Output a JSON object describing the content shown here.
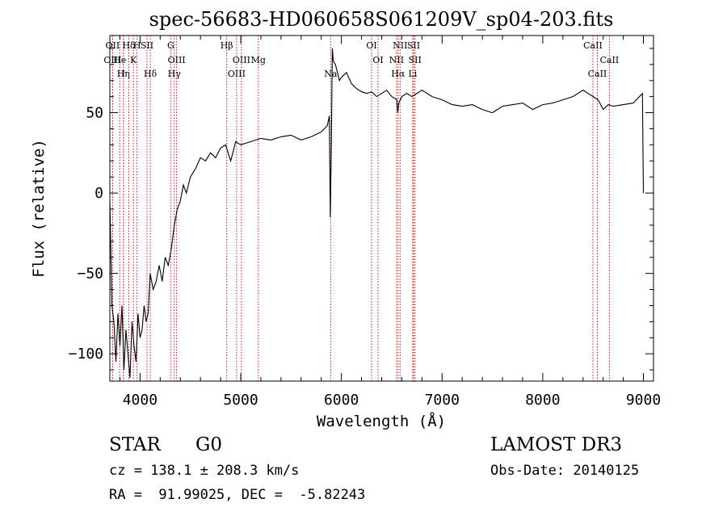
{
  "chart_data": {
    "type": "line",
    "title": "spec-56683-HD060658S061209V_sp04-203.fits",
    "xlabel": "Wavelength (Å)",
    "ylabel": "Flux (relative)",
    "xlim": [
      3700,
      9100
    ],
    "ylim": [
      -117,
      98
    ],
    "x_ticks": [
      4000,
      5000,
      6000,
      7000,
      8000,
      9000
    ],
    "y_ticks": [
      -100,
      -50,
      0,
      50
    ],
    "grid": false,
    "series": [
      {
        "color": "#000000",
        "x": [
          3700,
          3720,
          3740,
          3760,
          3780,
          3800,
          3820,
          3840,
          3860,
          3880,
          3900,
          3920,
          3940,
          3960,
          3980,
          4000,
          4020,
          4040,
          4060,
          4080,
          4100,
          4130,
          4160,
          4190,
          4220,
          4250,
          4280,
          4310,
          4340,
          4370,
          4400,
          4430,
          4460,
          4500,
          4550,
          4600,
          4650,
          4700,
          4750,
          4800,
          4850,
          4900,
          4950,
          5000,
          5100,
          5200,
          5300,
          5400,
          5500,
          5600,
          5700,
          5800,
          5860,
          5880,
          5890,
          5900,
          5910,
          5920,
          5940,
          5960,
          5980,
          6000,
          6050,
          6100,
          6150,
          6200,
          6250,
          6300,
          6350,
          6400,
          6450,
          6500,
          6550,
          6560,
          6570,
          6600,
          6650,
          6700,
          6800,
          6900,
          7000,
          7100,
          7200,
          7300,
          7400,
          7500,
          7600,
          7700,
          7800,
          7900,
          8000,
          8100,
          8200,
          8300,
          8400,
          8450,
          8500,
          8550,
          8600,
          8650,
          8700,
          8800,
          8900,
          8960,
          8990,
          9000
        ],
        "y": [
          -5,
          -70,
          -80,
          -105,
          -75,
          -95,
          -70,
          -110,
          -85,
          -100,
          -115,
          -80,
          -95,
          -105,
          -75,
          -90,
          -85,
          -70,
          -80,
          -75,
          -50,
          -60,
          -55,
          -45,
          -55,
          -40,
          -45,
          -35,
          -20,
          -10,
          -5,
          5,
          0,
          10,
          15,
          22,
          20,
          25,
          22,
          28,
          30,
          20,
          32,
          30,
          32,
          34,
          33,
          35,
          36,
          33,
          35,
          38,
          42,
          48,
          -15,
          30,
          90,
          82,
          80,
          75,
          70,
          72,
          75,
          68,
          65,
          63,
          62,
          63,
          60,
          62,
          64,
          60,
          58,
          50,
          56,
          60,
          62,
          60,
          64,
          60,
          58,
          55,
          54,
          55,
          52,
          50,
          54,
          55,
          56,
          52,
          55,
          56,
          58,
          60,
          64,
          62,
          60,
          58,
          52,
          55,
          54,
          55,
          56,
          60,
          62,
          0
        ]
      }
    ],
    "spectral_lines": [
      {
        "label": "Hδ",
        "wl": 3889
      },
      {
        "label": "K",
        "wl": 3934
      },
      {
        "label": "Hδ",
        "wl": 4102
      },
      {
        "label": "OII",
        "wl": 3727
      },
      {
        "label": "He",
        "wl": 3798
      },
      {
        "label": "I",
        "wl": 3835
      },
      {
        "label": "SII",
        "wl": 4069
      },
      {
        "label": "OIII",
        "wl": 3727
      },
      {
        "label": "Hη",
        "wl": 3835
      },
      {
        "label": "H",
        "wl": 3970
      },
      {
        "label": "OIII",
        "wl": 4363
      },
      {
        "label": "Hγ",
        "wl": 4340
      },
      {
        "label": "G",
        "wl": 4305
      },
      {
        "label": "OIII",
        "wl": 5007
      },
      {
        "label": "OIII",
        "wl": 4959
      },
      {
        "label": "Hβ",
        "wl": 4861
      },
      {
        "label": "Mg",
        "wl": 5175
      },
      {
        "label": "Na",
        "wl": 5893
      },
      {
        "label": "OI",
        "wl": 6300
      },
      {
        "label": "OI",
        "wl": 6364
      },
      {
        "label": "Hα",
        "wl": 6563
      },
      {
        "label": "SII",
        "wl": 6717
      },
      {
        "label": "NII",
        "wl": 6548
      },
      {
        "label": "Li",
        "wl": 6708
      },
      {
        "label": "NII",
        "wl": 6583
      },
      {
        "label": "SII",
        "wl": 6731
      },
      {
        "label": "CaII",
        "wl": 8542
      },
      {
        "label": "CaII",
        "wl": 8498
      },
      {
        "label": "CaII",
        "wl": 8662
      }
    ]
  },
  "info": {
    "object_type": "STAR",
    "subclass": "G0",
    "survey": "LAMOST DR3",
    "cz_line": "cz = 138.1 ± 208.3 km/s",
    "obs_date_line": "Obs-Date: 20140125",
    "radec_line": "RA =  91.99025, DEC =  -5.82243"
  }
}
